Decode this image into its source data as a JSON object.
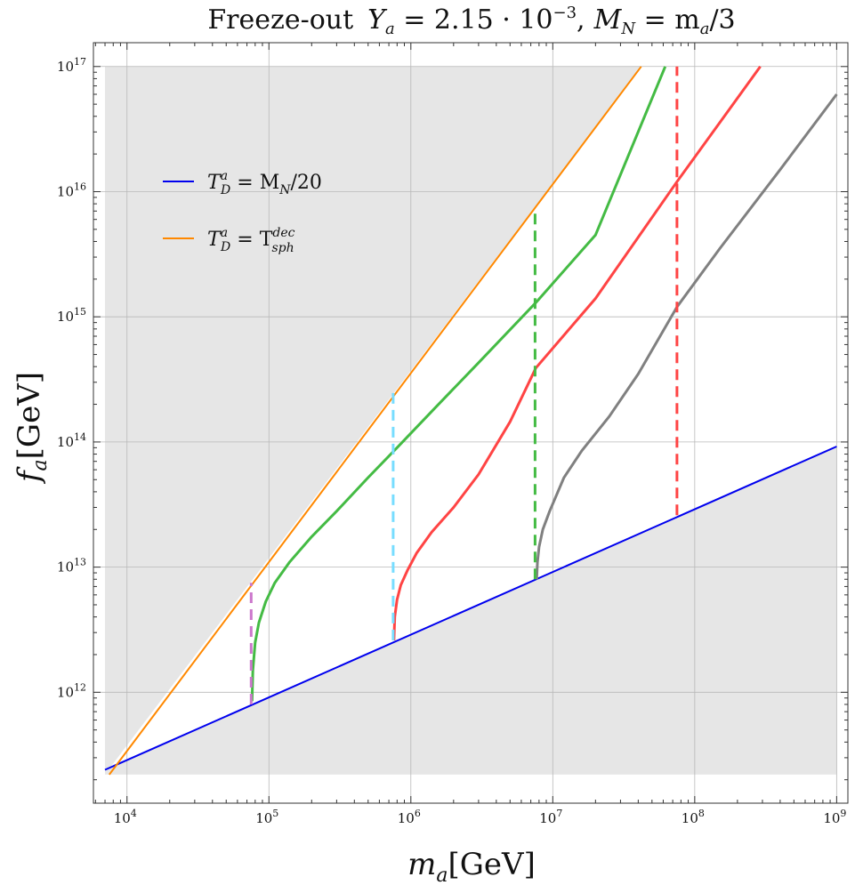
{
  "chart_data": {
    "type": "line",
    "title": "Freeze-out  Y_a = 2.15 · 10^{-3},  M_N = m_a/3",
    "title_parts": {
      "prefix": "Freeze-out",
      "ya_symbol": "Y",
      "ya_sub": "a",
      "ya_value": " = 2.15 · 10",
      "ya_exp": "−3",
      "sep": ",",
      "mn_symbol": "M",
      "mn_sub": "N",
      "mn_value": " = m",
      "mn_value_sub": "a",
      "mn_tail": "/3"
    },
    "xlabel": {
      "symbol": "m",
      "sub": "a",
      "unit": "[GeV]"
    },
    "ylabel": {
      "symbol": "f",
      "sub": "a",
      "unit": "[GeV]"
    },
    "xscale": "log",
    "yscale": "log",
    "xlim": [
      5800.0,
      1200000000.0
    ],
    "ylim": [
      130000000000.0,
      1.55e+17
    ],
    "xticks": [
      {
        "base": "10",
        "exp": "4",
        "value": 10000.0
      },
      {
        "base": "10",
        "exp": "5",
        "value": 100000.0
      },
      {
        "base": "10",
        "exp": "6",
        "value": 1000000.0
      },
      {
        "base": "10",
        "exp": "7",
        "value": 10000000.0
      },
      {
        "base": "10",
        "exp": "8",
        "value": 100000000.0
      },
      {
        "base": "10",
        "exp": "9",
        "value": 1000000000.0
      }
    ],
    "yticks": [
      {
        "base": "10",
        "exp": "12",
        "value": 1000000000000.0
      },
      {
        "base": "10",
        "exp": "13",
        "value": 10000000000000.0
      },
      {
        "base": "10",
        "exp": "14",
        "value": 100000000000000.0
      },
      {
        "base": "10",
        "exp": "15",
        "value": 1000000000000000.0
      },
      {
        "base": "10",
        "exp": "16",
        "value": 1e+16
      },
      {
        "base": "10",
        "exp": "17",
        "value": 1e+17
      }
    ],
    "grid": true,
    "shaded_regions": [
      {
        "description": "excluded",
        "color": "#e6e6e6"
      }
    ],
    "legend": {
      "position": "top-left",
      "entries": [
        {
          "symbol": "T",
          "sup": "a",
          "sub": "D",
          "rhs": " = M",
          "rhs_sub": "N",
          "rhs_tail": "/20",
          "color": "#0000ee"
        },
        {
          "symbol": "T",
          "sup": "a",
          "sub": "D",
          "rhs": " = T",
          "rhs_sup": "dec",
          "rhs_sub": "sph",
          "rhs_tail": "",
          "color": "#ff8800"
        }
      ]
    },
    "series": [
      {
        "color": "#0000ee",
        "style": "solid",
        "width": 2,
        "x": [
          7000.0,
          1000000000.0
        ],
        "y": [
          240000000000.0,
          92000000000000.0
        ]
      },
      {
        "color": "#ff8800",
        "style": "solid",
        "width": 2,
        "x": [
          7500.0,
          42000000.0
        ],
        "y": [
          220000000000.0,
          1e+17
        ]
      },
      {
        "color": "#44bb44",
        "style": "solid",
        "width": 3,
        "x": [
          76000.0,
          77000.0,
          80000.0,
          85000.0,
          95000.0,
          110000.0,
          140000.0,
          200000.0,
          300000.0,
          500000.0,
          800000.0,
          1500000.0,
          3000000.0,
          7600000.0,
          20000000.0,
          62000000.0
        ],
        "y": [
          850000000000.0,
          1500000000000.0,
          2500000000000.0,
          3600000000000.0,
          5300000000000.0,
          7500000000000.0,
          11000000000000.0,
          17500000000000.0,
          28000000000000.0,
          52000000000000.0,
          90000000000000.0,
          190000000000000.0,
          430000000000000.0,
          1300000000000000.0,
          4500000000000000.0,
          1e+17
        ]
      },
      {
        "color": "#ff4444",
        "style": "solid",
        "width": 3,
        "x": [
          760000.0,
          770000.0,
          800000.0,
          850000.0,
          950000.0,
          1100000.0,
          1400000.0,
          2000000.0,
          3000000.0,
          5000000.0,
          7600000.0,
          20000000.0,
          75000000.0,
          290000000.0
        ],
        "y": [
          2600000000000.0,
          4000000000000.0,
          5500000000000.0,
          7200000000000.0,
          9500000000000.0,
          13000000000000.0,
          19000000000000.0,
          30000000000000.0,
          55000000000000.0,
          145000000000000.0,
          390000000000000.0,
          1400000000000000.0,
          1.2e+16,
          1e+17
        ]
      },
      {
        "color": "#808080",
        "style": "solid",
        "width": 3,
        "x": [
          7700000.0,
          7800000.0,
          8000000.0,
          8500000.0,
          9500000.0,
          12000000.0,
          16000000.0,
          25000000.0,
          40000000.0,
          75000000.0,
          150000000.0,
          400000000.0,
          1000000000.0
        ],
        "y": [
          8000000000000.0,
          11000000000000.0,
          14500000000000.0,
          20000000000000.0,
          28000000000000.0,
          52000000000000.0,
          85000000000000.0,
          160000000000000.0,
          350000000000000.0,
          1200000000000000.0,
          3500000000000000.0,
          1.5e+16,
          6e+16
        ]
      },
      {
        "color": "#cc77cc",
        "style": "dashed",
        "width": 3,
        "x": [
          75000.0,
          75000.0
        ],
        "y": [
          800000000000.0,
          7500000000000.0
        ]
      },
      {
        "color": "#77ddff",
        "style": "dashed",
        "width": 3,
        "x": [
          750000.0,
          750000.0
        ],
        "y": [
          2600000000000.0,
          250000000000000.0
        ]
      },
      {
        "color": "#44bb44",
        "style": "dashed",
        "width": 3,
        "x": [
          7500000.0,
          7500000.0
        ],
        "y": [
          8000000000000.0,
          7200000000000000.0
        ]
      },
      {
        "color": "#ff4444",
        "style": "dashed",
        "width": 3,
        "x": [
          75000000.0,
          75000000.0
        ],
        "y": [
          26000000000000.0,
          1e+17
        ]
      }
    ]
  }
}
